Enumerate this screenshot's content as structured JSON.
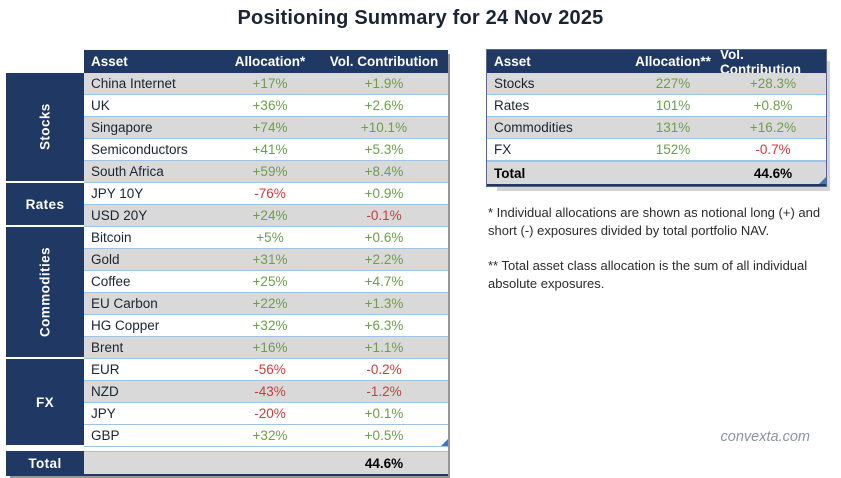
{
  "title": "Positioning Summary for 24 Nov 2025",
  "colors": {
    "header_navy": "#1F3864",
    "stripe_gray": "#D9D9D9",
    "positive_green": "#6F9C4F",
    "negative_red": "#C13F3F",
    "row_border_blue": "#9DC3E6",
    "corner_marker_blue": "#4472C4"
  },
  "left_table": {
    "headers": [
      "Asset",
      "Allocation*",
      "Vol. Contribution"
    ],
    "groups": [
      {
        "label": "Stocks",
        "orientation": "vertical",
        "span": 5
      },
      {
        "label": "Rates",
        "orientation": "horizontal",
        "span": 2
      },
      {
        "label": "Commodities",
        "orientation": "vertical",
        "span": 6
      },
      {
        "label": "FX",
        "orientation": "horizontal",
        "span": 4
      }
    ],
    "rows": [
      {
        "asset": "China Internet",
        "allocation": "+17%",
        "vol": "+1.9%",
        "shaded": true
      },
      {
        "asset": "UK",
        "allocation": "+36%",
        "vol": "+2.6%",
        "shaded": false
      },
      {
        "asset": "Singapore",
        "allocation": "+74%",
        "vol": "+10.1%",
        "shaded": true
      },
      {
        "asset": "Semiconductors",
        "allocation": "+41%",
        "vol": "+5.3%",
        "shaded": false
      },
      {
        "asset": "South Africa",
        "allocation": "+59%",
        "vol": "+8.4%",
        "shaded": true
      },
      {
        "asset": "JPY 10Y",
        "allocation": "-76%",
        "vol": "+0.9%",
        "shaded": false
      },
      {
        "asset": "USD 20Y",
        "allocation": "+24%",
        "vol": "-0.1%",
        "shaded": true
      },
      {
        "asset": "Bitcoin",
        "allocation": "+5%",
        "vol": "+0.6%",
        "shaded": false
      },
      {
        "asset": "Gold",
        "allocation": "+31%",
        "vol": "+2.2%",
        "shaded": true
      },
      {
        "asset": "Coffee",
        "allocation": "+25%",
        "vol": "+4.7%",
        "shaded": false
      },
      {
        "asset": "EU Carbon",
        "allocation": "+22%",
        "vol": "+1.3%",
        "shaded": true
      },
      {
        "asset": "HG Copper",
        "allocation": "+32%",
        "vol": "+6.3%",
        "shaded": false
      },
      {
        "asset": "Brent",
        "allocation": "+16%",
        "vol": "+1.1%",
        "shaded": true
      },
      {
        "asset": "EUR",
        "allocation": "-56%",
        "vol": "-0.2%",
        "shaded": false
      },
      {
        "asset": "NZD",
        "allocation": "-43%",
        "vol": "-1.2%",
        "shaded": true
      },
      {
        "asset": "JPY",
        "allocation": "-20%",
        "vol": "+0.1%",
        "shaded": false
      },
      {
        "asset": "GBP",
        "allocation": "+32%",
        "vol": "+0.5%",
        "shaded": false
      }
    ],
    "total_label": "Total",
    "total_allocation": "",
    "total_vol": "44.6%"
  },
  "right_table": {
    "headers": [
      "Asset",
      "Allocation**",
      "Vol. Contribution"
    ],
    "rows": [
      {
        "asset": "Stocks",
        "allocation": "227%",
        "vol": "+28.3%",
        "shaded": true
      },
      {
        "asset": "Rates",
        "allocation": "101%",
        "vol": "+0.8%",
        "shaded": false
      },
      {
        "asset": "Commodities",
        "allocation": "131%",
        "vol": "+16.2%",
        "shaded": true
      },
      {
        "asset": "FX",
        "allocation": "152%",
        "vol": "-0.7%",
        "shaded": false
      }
    ],
    "total_label": "Total",
    "total_allocation": "",
    "total_vol": "44.6%"
  },
  "footnotes": [
    "* Individual allocations are shown as notional long (+) and short (-) exposures divided by total portfolio NAV.",
    "** Total asset class allocation is the sum of all individual absolute exposures."
  ],
  "watermark": "convexta.com",
  "chart_data": [
    {
      "type": "table",
      "title": "Positioning Summary for 24 Nov 2025 — individual positions",
      "columns": [
        "Asset",
        "Allocation*",
        "Vol. Contribution"
      ],
      "row_groups": {
        "Stocks": 5,
        "Rates": 2,
        "Commodities": 6,
        "FX": 4
      },
      "rows": [
        [
          "China Internet",
          "+17%",
          "+1.9%"
        ],
        [
          "UK",
          "+36%",
          "+2.6%"
        ],
        [
          "Singapore",
          "+74%",
          "+10.1%"
        ],
        [
          "Semiconductors",
          "+41%",
          "+5.3%"
        ],
        [
          "South Africa",
          "+59%",
          "+8.4%"
        ],
        [
          "JPY 10Y",
          "-76%",
          "+0.9%"
        ],
        [
          "USD 20Y",
          "+24%",
          "-0.1%"
        ],
        [
          "Bitcoin",
          "+5%",
          "+0.6%"
        ],
        [
          "Gold",
          "+31%",
          "+2.2%"
        ],
        [
          "Coffee",
          "+25%",
          "+4.7%"
        ],
        [
          "EU Carbon",
          "+22%",
          "+1.3%"
        ],
        [
          "HG Copper",
          "+32%",
          "+6.3%"
        ],
        [
          "Brent",
          "+16%",
          "+1.1%"
        ],
        [
          "EUR",
          "-56%",
          "-0.2%"
        ],
        [
          "NZD",
          "-43%",
          "-1.2%"
        ],
        [
          "JPY",
          "-20%",
          "+0.1%"
        ],
        [
          "GBP",
          "+32%",
          "+0.5%"
        ],
        [
          "Total",
          "",
          "44.6%"
        ]
      ]
    },
    {
      "type": "table",
      "title": "Positioning Summary for 24 Nov 2025 — asset class totals",
      "columns": [
        "Asset",
        "Allocation**",
        "Vol. Contribution"
      ],
      "rows": [
        [
          "Stocks",
          "227%",
          "+28.3%"
        ],
        [
          "Rates",
          "101%",
          "+0.8%"
        ],
        [
          "Commodities",
          "131%",
          "+16.2%"
        ],
        [
          "FX",
          "152%",
          "-0.7%"
        ],
        [
          "Total",
          "",
          "44.6%"
        ]
      ]
    }
  ]
}
